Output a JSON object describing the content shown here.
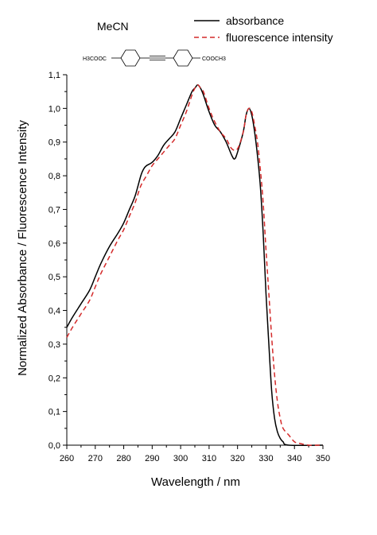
{
  "chart_data": {
    "type": "line",
    "solvent_label": "MeCN",
    "molecule_labels": {
      "left": "H3COOC",
      "right": "COOCH3"
    },
    "xlabel": "Wavelength / nm",
    "ylabel": "Normalized Absorbance / Fluorescence Intensity",
    "xlim": [
      260,
      350
    ],
    "ylim": [
      0.0,
      1.1
    ],
    "x_ticks": [
      "260",
      "270",
      "280",
      "290",
      "300",
      "310",
      "320",
      "330",
      "340",
      "350"
    ],
    "y_ticks": [
      "0,0",
      "0,1",
      "0,2",
      "0,3",
      "0,4",
      "0,5",
      "0,6",
      "0,7",
      "0,8",
      "0,9",
      "1,0",
      "1,1"
    ],
    "legend_position": "top-right",
    "grid": false,
    "series": [
      {
        "name": "absorbance",
        "color": "#000000",
        "style": "solid",
        "points": [
          [
            260,
            0.35
          ],
          [
            262,
            0.38
          ],
          [
            265,
            0.42
          ],
          [
            268,
            0.46
          ],
          [
            270,
            0.5
          ],
          [
            272,
            0.54
          ],
          [
            275,
            0.59
          ],
          [
            278,
            0.63
          ],
          [
            280,
            0.66
          ],
          [
            282,
            0.7
          ],
          [
            284,
            0.74
          ],
          [
            286,
            0.8
          ],
          [
            287,
            0.82
          ],
          [
            288,
            0.83
          ],
          [
            290,
            0.84
          ],
          [
            292,
            0.86
          ],
          [
            294,
            0.89
          ],
          [
            296,
            0.91
          ],
          [
            298,
            0.93
          ],
          [
            300,
            0.97
          ],
          [
            302,
            1.01
          ],
          [
            304,
            1.05
          ],
          [
            305,
            1.06
          ],
          [
            306,
            1.07
          ],
          [
            307,
            1.06
          ],
          [
            308,
            1.04
          ],
          [
            310,
            0.99
          ],
          [
            312,
            0.95
          ],
          [
            314,
            0.93
          ],
          [
            316,
            0.9
          ],
          [
            318,
            0.86
          ],
          [
            319,
            0.85
          ],
          [
            320,
            0.87
          ],
          [
            322,
            0.93
          ],
          [
            323,
            0.98
          ],
          [
            324,
            1.0
          ],
          [
            325,
            0.98
          ],
          [
            326,
            0.93
          ],
          [
            327,
            0.86
          ],
          [
            328,
            0.77
          ],
          [
            329,
            0.63
          ],
          [
            330,
            0.45
          ],
          [
            331,
            0.3
          ],
          [
            332,
            0.16
          ],
          [
            333,
            0.08
          ],
          [
            334,
            0.04
          ],
          [
            335,
            0.02
          ],
          [
            336,
            0.01
          ],
          [
            338,
            0.0
          ],
          [
            350,
            0.0
          ]
        ]
      },
      {
        "name": "fluorescence intensity",
        "color": "#d42a2a",
        "style": "dashed",
        "points": [
          [
            260,
            0.32
          ],
          [
            262,
            0.35
          ],
          [
            265,
            0.39
          ],
          [
            268,
            0.43
          ],
          [
            270,
            0.47
          ],
          [
            272,
            0.51
          ],
          [
            275,
            0.56
          ],
          [
            278,
            0.61
          ],
          [
            280,
            0.64
          ],
          [
            282,
            0.68
          ],
          [
            284,
            0.72
          ],
          [
            286,
            0.77
          ],
          [
            288,
            0.8
          ],
          [
            290,
            0.83
          ],
          [
            292,
            0.85
          ],
          [
            294,
            0.87
          ],
          [
            296,
            0.89
          ],
          [
            298,
            0.91
          ],
          [
            300,
            0.95
          ],
          [
            302,
            0.99
          ],
          [
            304,
            1.04
          ],
          [
            305,
            1.06
          ],
          [
            306,
            1.07
          ],
          [
            307,
            1.06
          ],
          [
            308,
            1.05
          ],
          [
            310,
            1.0
          ],
          [
            312,
            0.96
          ],
          [
            314,
            0.93
          ],
          [
            316,
            0.91
          ],
          [
            318,
            0.88
          ],
          [
            320,
            0.88
          ],
          [
            322,
            0.93
          ],
          [
            323,
            0.98
          ],
          [
            324,
            1.0
          ],
          [
            325,
            0.99
          ],
          [
            326,
            0.95
          ],
          [
            327,
            0.9
          ],
          [
            328,
            0.82
          ],
          [
            329,
            0.72
          ],
          [
            330,
            0.58
          ],
          [
            331,
            0.45
          ],
          [
            332,
            0.32
          ],
          [
            333,
            0.21
          ],
          [
            334,
            0.13
          ],
          [
            335,
            0.08
          ],
          [
            336,
            0.05
          ],
          [
            338,
            0.03
          ],
          [
            340,
            0.01
          ],
          [
            342,
            0.005
          ],
          [
            345,
            0.0
          ],
          [
            350,
            0.0
          ]
        ]
      }
    ]
  }
}
